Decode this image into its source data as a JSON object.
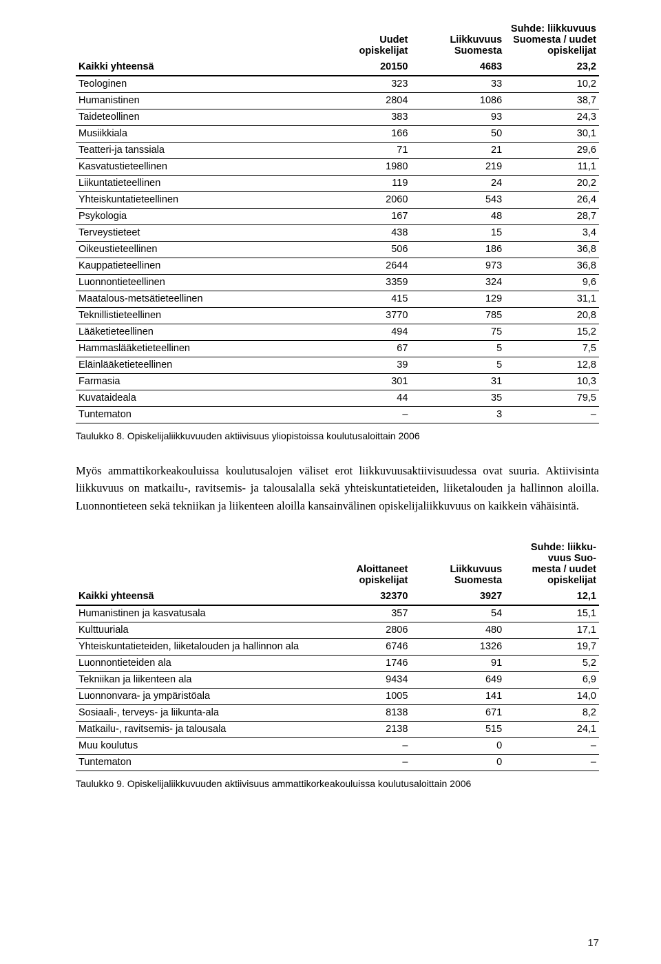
{
  "table1": {
    "headers": {
      "label": "Kaikki yhteensä",
      "col1_line1": "Uudet",
      "col1_line2": "opiskelijat",
      "col2_line1": "Liikkuvuus",
      "col2_line2": "Suomesta",
      "col3_line1": "Suhde: liikkuvuus",
      "col3_line2": "Suomesta / uudet",
      "col3_line3": "opiskelijat",
      "total_col1": "20150",
      "total_col2": "4683",
      "total_col3": "23,2"
    },
    "rows": [
      {
        "label": "Teologinen",
        "c1": "323",
        "c2": "33",
        "c3": "10,2"
      },
      {
        "label": "Humanistinen",
        "c1": "2804",
        "c2": "1086",
        "c3": "38,7"
      },
      {
        "label": "Taideteollinen",
        "c1": "383",
        "c2": "93",
        "c3": "24,3"
      },
      {
        "label": "Musiikkiala",
        "c1": "166",
        "c2": "50",
        "c3": "30,1"
      },
      {
        "label": "Teatteri-ja tanssiala",
        "c1": "71",
        "c2": "21",
        "c3": "29,6"
      },
      {
        "label": "Kasvatustieteellinen",
        "c1": "1980",
        "c2": "219",
        "c3": "11,1"
      },
      {
        "label": "Liikuntatieteellinen",
        "c1": "119",
        "c2": "24",
        "c3": "20,2"
      },
      {
        "label": "Yhteiskuntatieteellinen",
        "c1": "2060",
        "c2": "543",
        "c3": "26,4"
      },
      {
        "label": "Psykologia",
        "c1": "167",
        "c2": "48",
        "c3": "28,7"
      },
      {
        "label": "Terveystieteet",
        "c1": "438",
        "c2": "15",
        "c3": "3,4"
      },
      {
        "label": "Oikeustieteellinen",
        "c1": "506",
        "c2": "186",
        "c3": "36,8"
      },
      {
        "label": "Kauppatieteellinen",
        "c1": "2644",
        "c2": "973",
        "c3": "36,8"
      },
      {
        "label": "Luonnontieteellinen",
        "c1": "3359",
        "c2": "324",
        "c3": "9,6"
      },
      {
        "label": "Maatalous-metsätieteellinen",
        "c1": "415",
        "c2": "129",
        "c3": "31,1"
      },
      {
        "label": "Teknillistieteellinen",
        "c1": "3770",
        "c2": "785",
        "c3": "20,8"
      },
      {
        "label": "Lääketieteellinen",
        "c1": "494",
        "c2": "75",
        "c3": "15,2"
      },
      {
        "label": "Hammaslääketieteellinen",
        "c1": "67",
        "c2": "5",
        "c3": "7,5"
      },
      {
        "label": "Eläinlääketieteellinen",
        "c1": "39",
        "c2": "5",
        "c3": "12,8"
      },
      {
        "label": "Farmasia",
        "c1": "301",
        "c2": "31",
        "c3": "10,3"
      },
      {
        "label": "Kuvataideala",
        "c1": "44",
        "c2": "35",
        "c3": "79,5"
      },
      {
        "label": "Tuntematon",
        "c1": "–",
        "c2": "3",
        "c3": "–"
      }
    ],
    "caption": "Taulukko 8. Opiskelijaliikkuvuuden aktiivisuus yliopistoissa koulutusaloittain 2006"
  },
  "paragraph": "Myös ammattikorkeakouluissa koulutusalojen väliset erot liikkuvuusaktiivisuudessa ovat suuria. Aktiivisinta liikkuvuus on matkailu-, ravitsemis- ja talousalalla sekä yhteiskuntatieteiden, liiketalouden ja hallinnon aloilla. Luonnontieteen sekä tekniikan ja liikenteen aloilla kansainvälinen opiskelijaliikkuvuus on kaikkein vähäisintä.",
  "table2": {
    "headers": {
      "label": "Kaikki yhteensä",
      "col1_line1": "Aloittaneet",
      "col1_line2": "opiskelijat",
      "col2_line1": "Liikkuvuus",
      "col2_line2": "Suomesta",
      "col3_line1": "Suhde: liikku-",
      "col3_line2": "vuus Suo-",
      "col3_line3": "mesta / uudet",
      "col3_line4": "opiskelijat",
      "total_col1": "32370",
      "total_col2": "3927",
      "total_col3": "12,1"
    },
    "rows": [
      {
        "label": "Humanistinen ja kasvatusala",
        "c1": "357",
        "c2": "54",
        "c3": "15,1"
      },
      {
        "label": "Kulttuuriala",
        "c1": "2806",
        "c2": "480",
        "c3": "17,1"
      },
      {
        "label": "Yhteiskuntatieteiden, liiketalouden ja hallinnon ala",
        "c1": "6746",
        "c2": "1326",
        "c3": "19,7"
      },
      {
        "label": "Luonnontieteiden ala",
        "c1": "1746",
        "c2": "91",
        "c3": "5,2"
      },
      {
        "label": "Tekniikan ja liikenteen ala",
        "c1": "9434",
        "c2": "649",
        "c3": "6,9"
      },
      {
        "label": "Luonnonvara- ja ympäristöala",
        "c1": "1005",
        "c2": "141",
        "c3": "14,0"
      },
      {
        "label": "Sosiaali-, terveys- ja liikunta-ala",
        "c1": "8138",
        "c2": "671",
        "c3": "8,2"
      },
      {
        "label": "Matkailu-, ravitsemis- ja talousala",
        "c1": "2138",
        "c2": "515",
        "c3": "24,1"
      },
      {
        "label": "Muu koulutus",
        "c1": "–",
        "c2": "0",
        "c3": "–"
      },
      {
        "label": "Tuntematon",
        "c1": "–",
        "c2": "0",
        "c3": "–"
      }
    ],
    "caption": "Taulukko 9. Opiskelijaliikkuvuuden aktiivisuus ammattikorkeakouluissa koulutusaloittain 2006"
  },
  "page_number": "17"
}
